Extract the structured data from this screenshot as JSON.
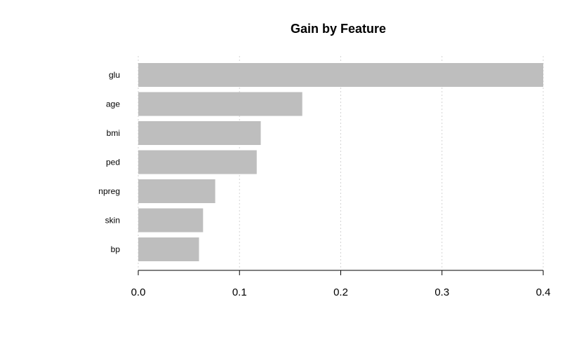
{
  "chart_data": {
    "type": "bar",
    "orientation": "horizontal",
    "title": "Gain by Feature",
    "xlabel": "",
    "ylabel": "",
    "categories": [
      "glu",
      "age",
      "bmi",
      "ped",
      "npreg",
      "skin",
      "bp"
    ],
    "values": [
      0.4,
      0.162,
      0.121,
      0.117,
      0.076,
      0.064,
      0.06
    ],
    "xlim": [
      0,
      0.4
    ],
    "xticks": [
      0.0,
      0.1,
      0.2,
      0.3,
      0.4
    ],
    "xtick_labels": [
      "0.0",
      "0.1",
      "0.2",
      "0.3",
      "0.4"
    ],
    "grid": true,
    "bar_color": "#bebebe"
  }
}
